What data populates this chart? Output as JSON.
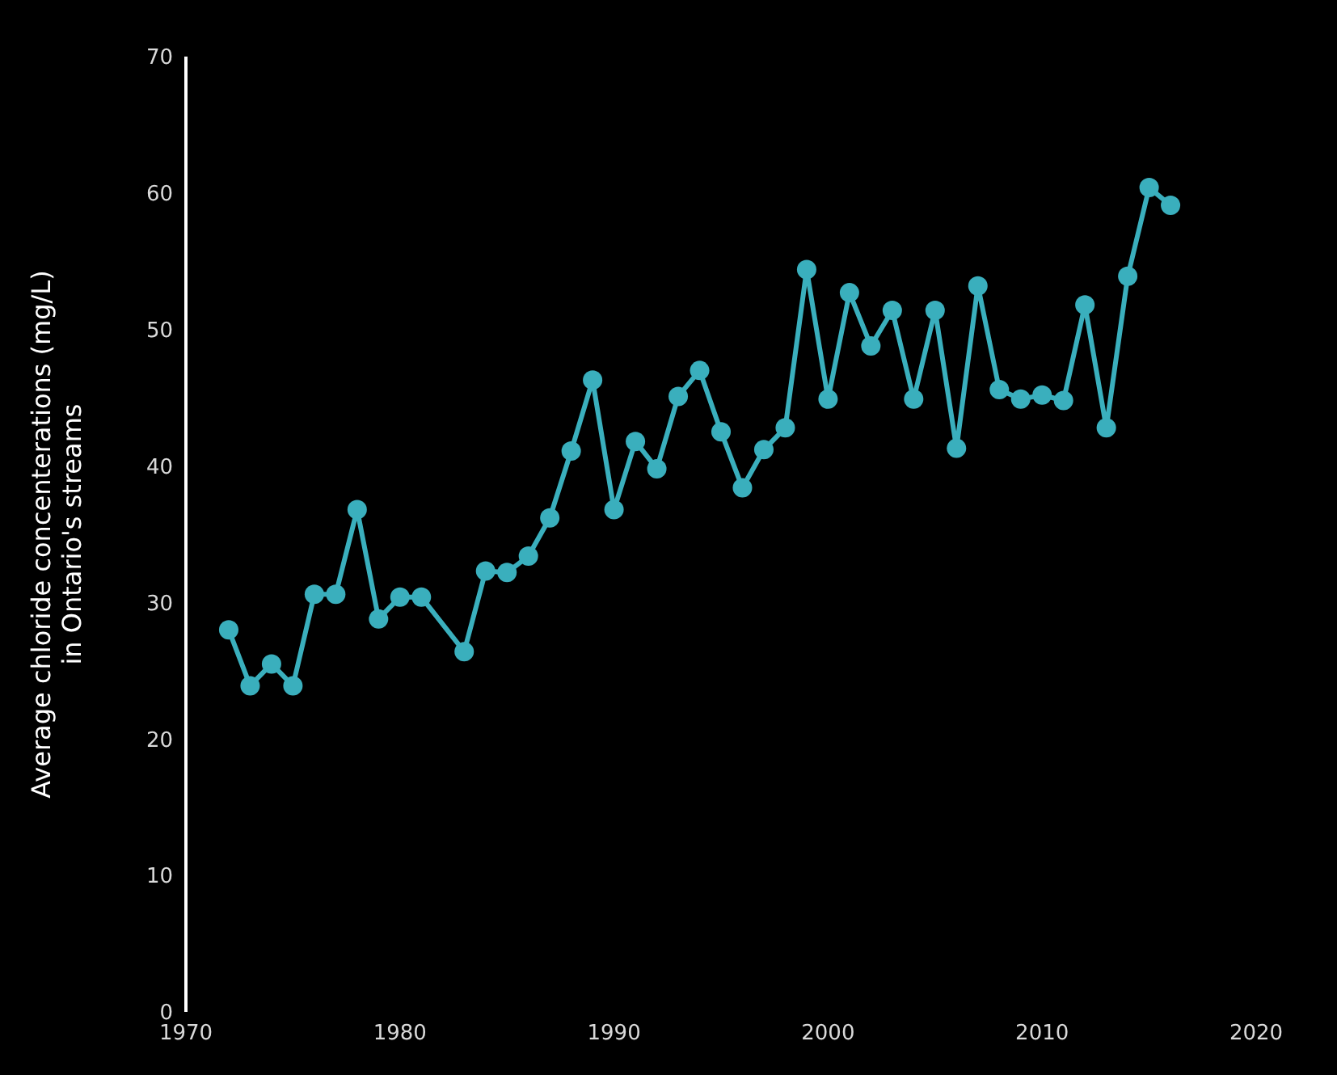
{
  "chart_data": {
    "type": "line",
    "ylabel": "Average chloride concenterations (mg/L) in Ontario's streams",
    "x": [
      1972,
      1973,
      1974,
      1975,
      1976,
      1977,
      1978,
      1979,
      1980,
      1981,
      1983,
      1984,
      1985,
      1986,
      1987,
      1988,
      1989,
      1990,
      1991,
      1992,
      1993,
      1994,
      1995,
      1996,
      1997,
      1998,
      1999,
      2000,
      2001,
      2002,
      2003,
      2004,
      2005,
      2006,
      2007,
      2008,
      2009,
      2010,
      2011,
      2012,
      2013,
      2014,
      2015,
      2016
    ],
    "series": [
      {
        "color": "#3aafbd",
        "values": [
          28.0,
          23.9,
          25.5,
          23.9,
          30.6,
          30.6,
          36.8,
          28.8,
          30.4,
          30.4,
          26.4,
          32.3,
          32.2,
          33.4,
          36.2,
          41.1,
          46.3,
          36.8,
          41.8,
          39.8,
          45.1,
          47.0,
          42.5,
          38.4,
          41.2,
          42.8,
          54.4,
          44.9,
          52.7,
          48.8,
          51.4,
          44.9,
          51.4,
          41.3,
          53.2,
          45.6,
          44.9,
          45.2,
          44.8,
          51.8,
          42.8,
          53.9,
          60.4,
          59.1
        ]
      }
    ],
    "xlim": [
      1970,
      2020
    ],
    "xticks": [
      1970,
      1980,
      1990,
      2000,
      2010,
      2020
    ],
    "ylim": [
      0,
      70
    ],
    "yticks": [
      0,
      10,
      20,
      30,
      40,
      50,
      60,
      70
    ],
    "grid": false,
    "legend": false,
    "marker": "circle",
    "line_style": "solid"
  }
}
